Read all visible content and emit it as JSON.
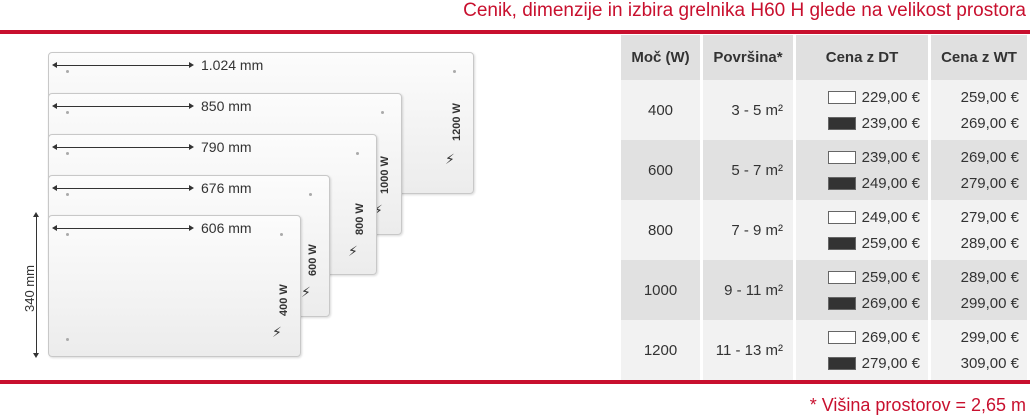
{
  "title": "Cenik, dimenzije in izbira grelnika H60 H glede na velikost prostora",
  "height_label": "340 mm",
  "panels": [
    {
      "width": "1.024 mm",
      "power": "1200 W"
    },
    {
      "width": "850 mm",
      "power": "1000 W"
    },
    {
      "width": "790 mm",
      "power": "800 W"
    },
    {
      "width": "676 mm",
      "power": "600 W"
    },
    {
      "width": "606 mm",
      "power": "400 W"
    }
  ],
  "table": {
    "headers": [
      "Moč (W)",
      "Površina*",
      "Cena z DT",
      "Cena z WT"
    ],
    "rows": [
      {
        "power": "400",
        "area": "3 - 5 m²",
        "dt_white": "229,00 €",
        "dt_black": "239,00 €",
        "wt_white": "259,00 €",
        "wt_black": "269,00 €"
      },
      {
        "power": "600",
        "area": "5 - 7 m²",
        "dt_white": "239,00 €",
        "dt_black": "249,00 €",
        "wt_white": "269,00 €",
        "wt_black": "279,00 €"
      },
      {
        "power": "800",
        "area": "7 - 9 m²",
        "dt_white": "249,00 €",
        "dt_black": "259,00 €",
        "wt_white": "279,00 €",
        "wt_black": "289,00 €"
      },
      {
        "power": "1000",
        "area": "9 - 11 m²",
        "dt_white": "259,00 €",
        "dt_black": "269,00 €",
        "wt_white": "289,00 €",
        "wt_black": "299,00 €"
      },
      {
        "power": "1200",
        "area": "11 - 13 m²",
        "dt_white": "269,00 €",
        "dt_black": "279,00 €",
        "wt_white": "299,00 €",
        "wt_black": "309,00 €"
      }
    ]
  },
  "footnote": "* Višina prostorov = 2,65 m",
  "colors": {
    "accent": "#c8102e",
    "white_swatch": "#ffffff",
    "black_swatch": "#333333"
  }
}
